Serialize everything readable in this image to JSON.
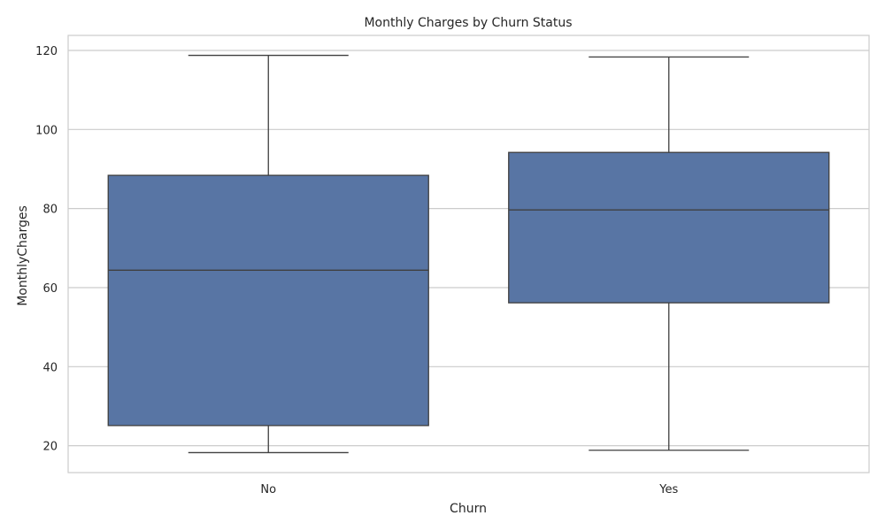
{
  "chart_data": {
    "type": "box",
    "title": "Monthly Charges by Churn Status",
    "xlabel": "Churn",
    "ylabel": "MonthlyCharges",
    "categories": [
      "No",
      "Yes"
    ],
    "boxes": [
      {
        "category": "No",
        "whisker_low": 18.25,
        "q1": 25.1,
        "median": 64.4,
        "q3": 88.4,
        "whisker_high": 118.75
      },
      {
        "category": "Yes",
        "whisker_low": 18.85,
        "q1": 56.15,
        "median": 79.65,
        "q3": 94.2,
        "whisker_high": 118.35
      }
    ],
    "yticks": [
      20,
      40,
      60,
      80,
      100,
      120
    ],
    "ylim": [
      13.2,
      123.8
    ],
    "grid": true,
    "colors": {
      "box_fill": "#5875a4",
      "line": "#3f3f3f",
      "grid": "#cccccc",
      "frame": "#cccccc"
    }
  }
}
